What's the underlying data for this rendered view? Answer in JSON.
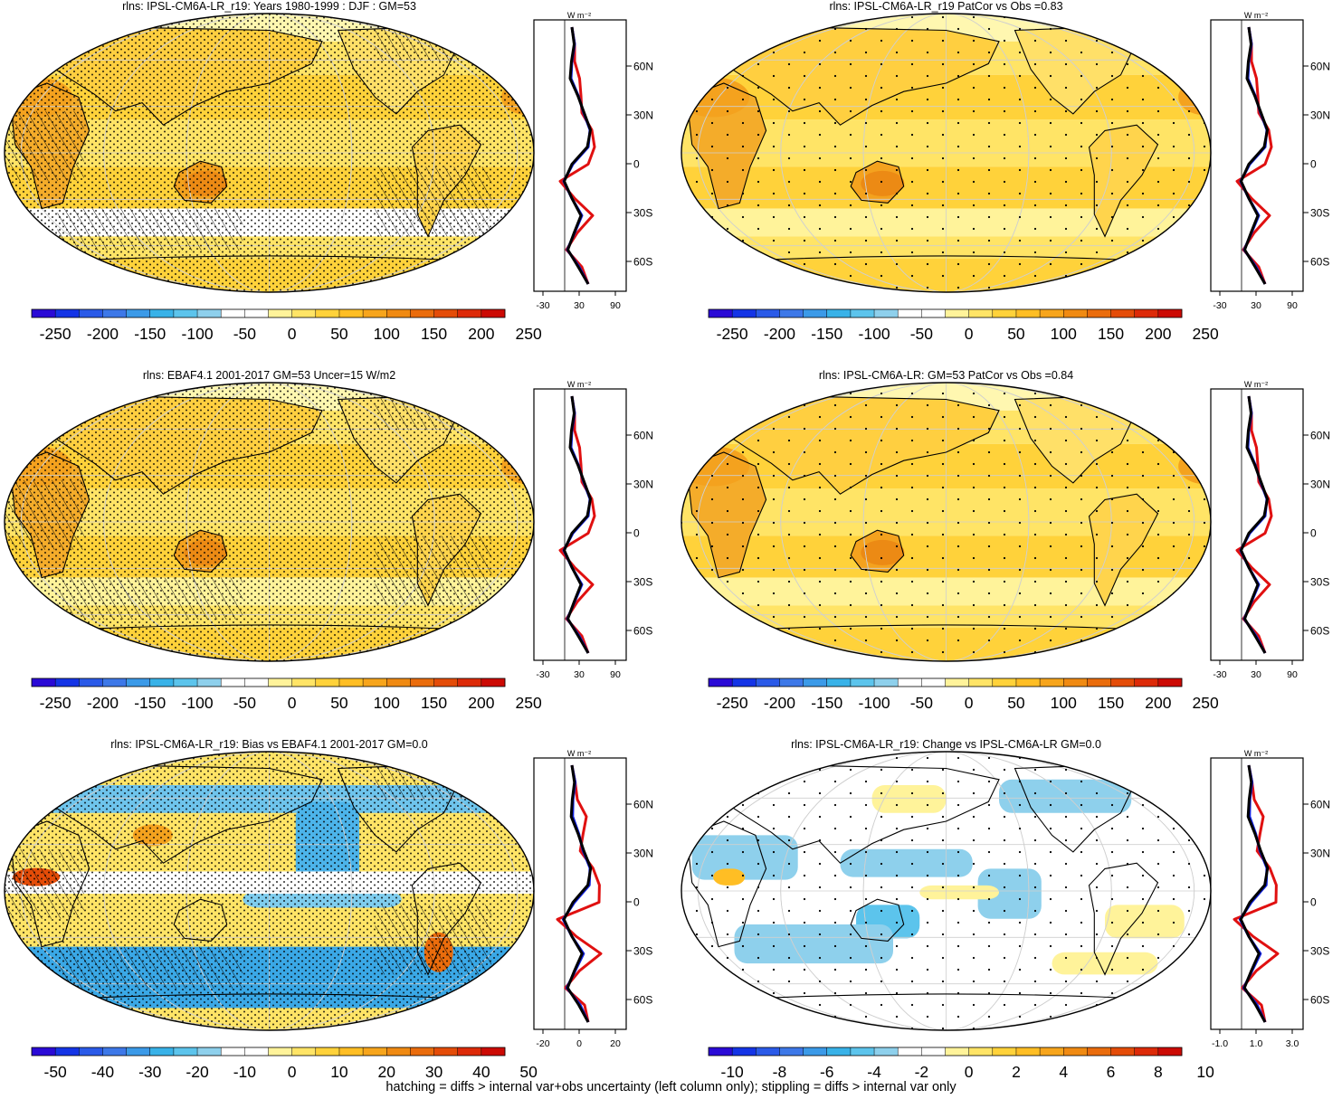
{
  "footer": "hatching = diffs > internal var+obs uncertainty (left column only); stippling = diffs > internal var only",
  "profile_unit": "W m⁻²",
  "lat_labels": [
    "60N",
    "30N",
    "0",
    "30S",
    "60S"
  ],
  "panels": [
    {
      "title": "rlns: IPSL-CM6A-LR_r19: Years 1980-1999 : DJF : GM=53",
      "colorbar_labels": [
        "-250",
        "-200",
        "-150",
        "-100",
        "-50",
        "0",
        "50",
        "100",
        "150",
        "200",
        "250"
      ],
      "profile_ticks": [
        "-30",
        "30",
        "90"
      ],
      "kind": "absolute",
      "hatch": "dense",
      "stipple": "dense"
    },
    {
      "title": "rlns: IPSL-CM6A-LR_r19 PatCor vs Obs =0.83",
      "colorbar_labels": [
        "-250",
        "-200",
        "-150",
        "-100",
        "-50",
        "0",
        "50",
        "100",
        "150",
        "200",
        "250"
      ],
      "profile_ticks": [
        "-30",
        "30",
        "90"
      ],
      "kind": "absolute",
      "hatch": "none",
      "stipple": "sparse"
    },
    {
      "title": "rlns: EBAF4.1 2001-2017 GM=53 Uncer=15 W/m2",
      "colorbar_labels": [
        "-250",
        "-200",
        "-150",
        "-100",
        "-50",
        "0",
        "50",
        "100",
        "150",
        "200",
        "250"
      ],
      "profile_ticks": [
        "-30",
        "30",
        "90"
      ],
      "kind": "absolute",
      "hatch": "dense",
      "stipple": "dense"
    },
    {
      "title": "rlns: IPSL-CM6A-LR: GM=53 PatCor vs Obs =0.84",
      "colorbar_labels": [
        "-250",
        "-200",
        "-150",
        "-100",
        "-50",
        "0",
        "50",
        "100",
        "150",
        "200",
        "250"
      ],
      "profile_ticks": [
        "-30",
        "30",
        "90"
      ],
      "kind": "absolute",
      "hatch": "none",
      "stipple": "sparse"
    },
    {
      "title": "rlns: IPSL-CM6A-LR_r19: Bias vs EBAF4.1 2001-2017 GM=0.0",
      "colorbar_labels": [
        "-50",
        "-40",
        "-30",
        "-20",
        "-10",
        "0",
        "10",
        "20",
        "30",
        "40",
        "50"
      ],
      "profile_ticks": [
        "-20",
        "0",
        "20"
      ],
      "kind": "bias",
      "hatch": "dense",
      "stipple": "dense"
    },
    {
      "title": "rlns: IPSL-CM6A-LR_r19: Change vs IPSL-CM6A-LR GM=0.0",
      "colorbar_labels": [
        "-10",
        "-8",
        "-6",
        "-4",
        "-2",
        "0",
        "2",
        "4",
        "6",
        "8",
        "10"
      ],
      "profile_ticks": [
        "-1.0",
        "1.0",
        "3.0"
      ],
      "kind": "change",
      "hatch": "none",
      "stipple": "sparse"
    }
  ],
  "palette": [
    "#2a0ad6",
    "#1434e6",
    "#2a5ae8",
    "#3d78e8",
    "#3b9ae8",
    "#38b2e8",
    "#5cc4ec",
    "#8ed0ec",
    "#ffffff",
    "#ffffff",
    "#fff39a",
    "#ffe466",
    "#ffd23a",
    "#ffbe24",
    "#f7a51c",
    "#f08a12",
    "#ea6c0c",
    "#e44c08",
    "#dd2a08",
    "#cc0a04"
  ]
}
